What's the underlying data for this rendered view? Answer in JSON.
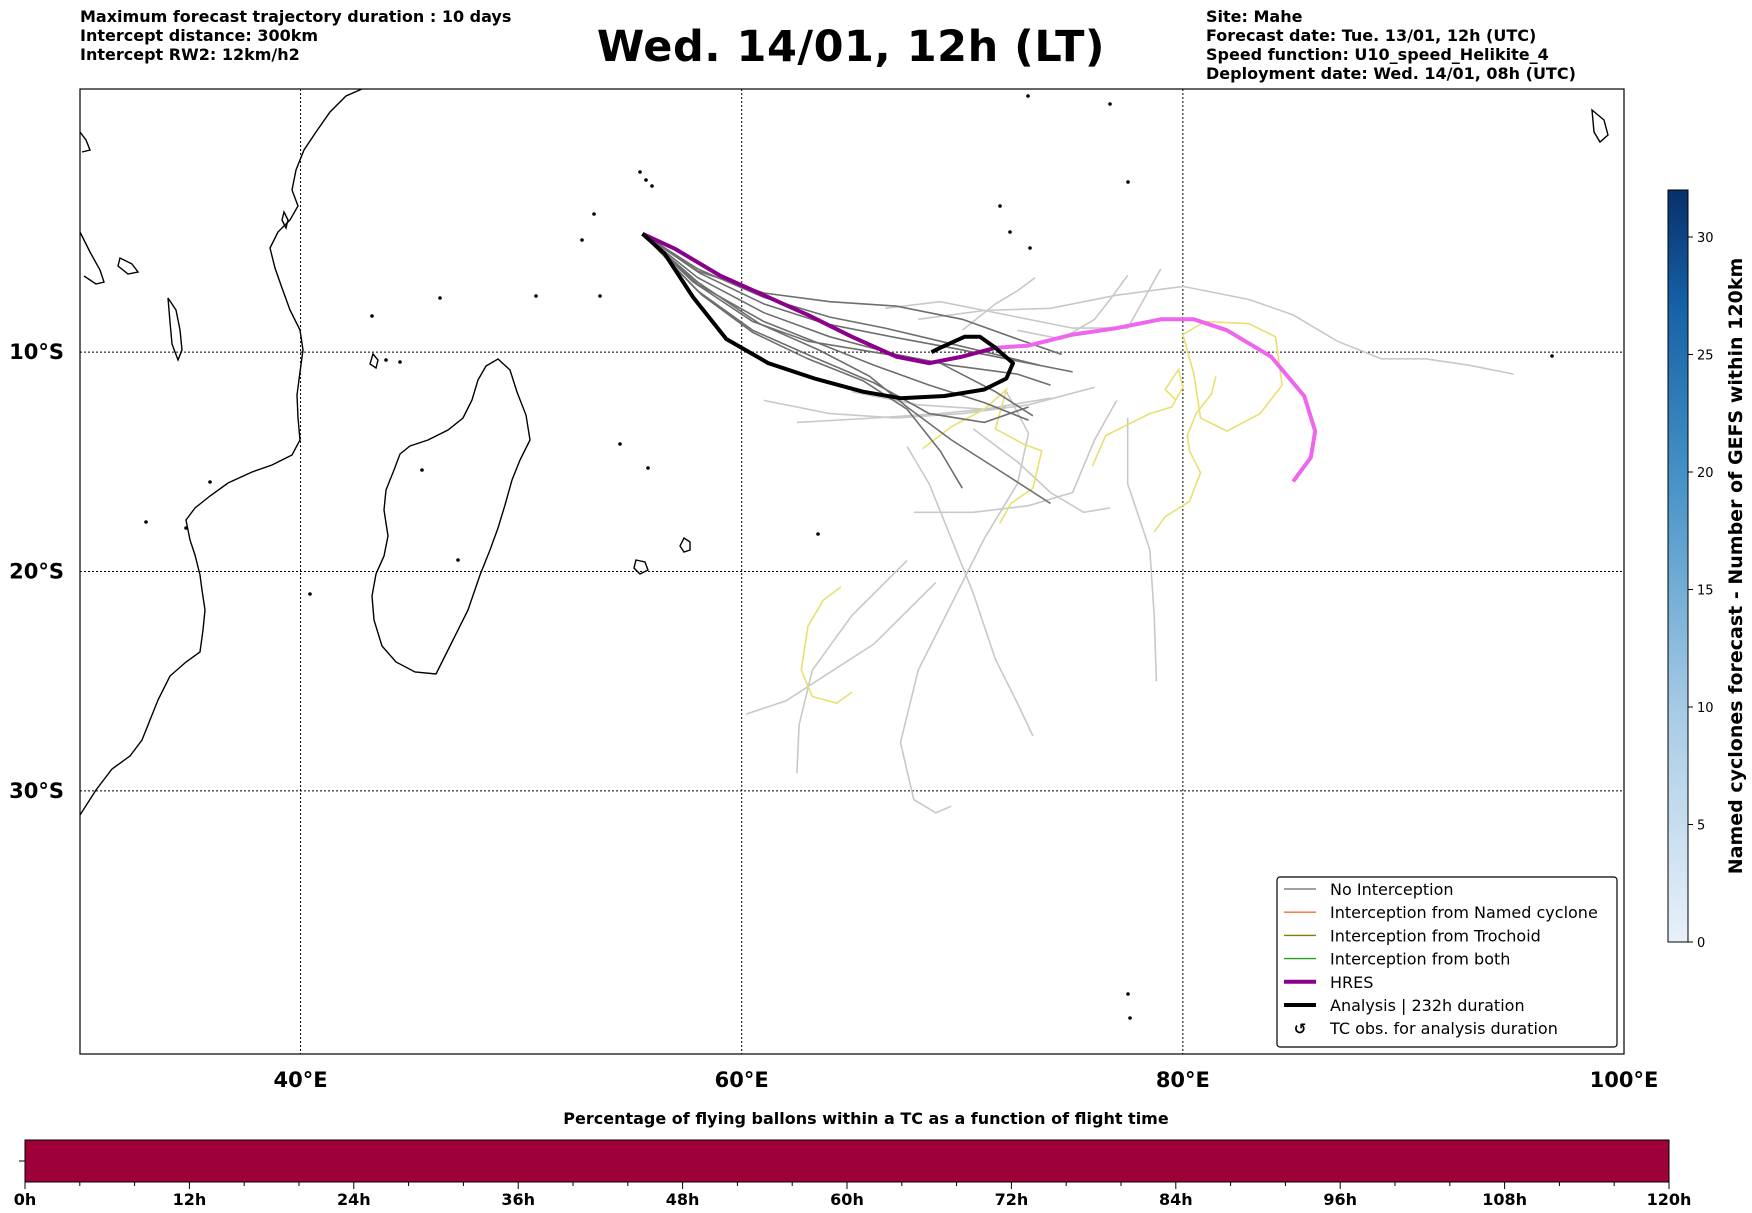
{
  "header": {
    "left_lines": [
      "Maximum forecast trajectory duration : 10 days",
      "Intercept distance: 300km",
      "Intercept RW2: 12km/h2"
    ],
    "title": "Wed. 14/01, 12h (LT)",
    "right_lines": [
      "Site: Mahe",
      "Forecast date: Tue. 13/01, 12h (UTC)",
      "Speed function: U10_speed_Helikite_4",
      "Deployment date: Wed. 14/01, 08h (UTC)"
    ]
  },
  "map": {
    "lon_range": [
      30,
      100
    ],
    "lat_range": [
      2,
      -42
    ],
    "lon_ticks": [
      "40°E",
      "60°E",
      "80°E",
      "100°E"
    ],
    "lat_ticks": [
      "10°S",
      "20°S",
      "30°S"
    ],
    "gridlines": true
  },
  "legend": {
    "position": "bottom-right",
    "entries": [
      {
        "label": "No Interception",
        "color": "#808080"
      },
      {
        "label": "Interception from Named cyclone",
        "color": "#ff6a33"
      },
      {
        "label": "Interception from Trochoid",
        "color": "#808000"
      },
      {
        "label": "Interception from both",
        "color": "#22a022"
      },
      {
        "label": "HRES",
        "color": "#8b008b"
      },
      {
        "label": "Analysis | 232h duration",
        "color": "#000000"
      },
      {
        "label": "TC obs. for analysis duration",
        "icon": "cyclone-symbol-icon"
      }
    ]
  },
  "colorbar_right": {
    "label": "Named cyclones forecast - Number of GEFS within 120km",
    "ticks": [
      "0",
      "5",
      "10",
      "15",
      "20",
      "25",
      "30"
    ],
    "range": [
      0,
      32
    ],
    "colors": [
      "#e6eef8",
      "#08306b"
    ]
  },
  "colorbar_bottom": {
    "title": "Percentage of flying ballons within a TC as a function of flight time",
    "ticks": [
      "0h",
      "12h",
      "24h",
      "36h",
      "48h",
      "60h",
      "72h",
      "84h",
      "96h",
      "108h",
      "120h"
    ],
    "fill_color": "#9e003a"
  },
  "trajectories": {
    "start": [
      55.5,
      -4.6
    ],
    "hres": [
      [
        55.5,
        -4.6
      ],
      [
        57,
        -5.3
      ],
      [
        59,
        -6.5
      ],
      [
        61,
        -7.4
      ],
      [
        63,
        -8.3
      ],
      [
        65,
        -9.3
      ],
      [
        67,
        -10.2
      ],
      [
        68.5,
        -10.5
      ],
      [
        70,
        -10.2
      ],
      [
        71.5,
        -9.8
      ],
      [
        73,
        -9.7
      ],
      [
        75,
        -9.2
      ],
      [
        77,
        -8.9
      ],
      [
        79,
        -8.5
      ],
      [
        80.5,
        -8.5
      ],
      [
        82,
        -9.0
      ],
      [
        84,
        -10.2
      ],
      [
        85.5,
        -12
      ],
      [
        86,
        -13.6
      ],
      [
        85.8,
        -14.8
      ],
      [
        85,
        -15.9
      ]
    ],
    "analysis": [
      [
        55.5,
        -4.6
      ],
      [
        56.5,
        -5.5
      ],
      [
        57.8,
        -7.5
      ],
      [
        59.3,
        -9.4
      ],
      [
        61.2,
        -10.5
      ],
      [
        63.3,
        -11.2
      ],
      [
        65.5,
        -11.8
      ],
      [
        67.2,
        -12.1
      ],
      [
        69.2,
        -12.0
      ],
      [
        71,
        -11.7
      ],
      [
        72,
        -11.2
      ],
      [
        72.3,
        -10.5
      ],
      [
        71.5,
        -9.8
      ],
      [
        70.8,
        -9.3
      ],
      [
        70.1,
        -9.3
      ],
      [
        69,
        -9.8
      ],
      [
        68.6,
        -10.0
      ]
    ],
    "gray_ensemble": [
      [
        [
          55.5,
          -4.6
        ],
        [
          58,
          -6.2
        ],
        [
          61,
          -7.5
        ],
        [
          64,
          -8.4
        ],
        [
          66.5,
          -8.9
        ],
        [
          69,
          -9.5
        ],
        [
          71.5,
          -10.1
        ],
        [
          73.5,
          -10.6
        ]
      ],
      [
        [
          55.5,
          -4.6
        ],
        [
          58,
          -6.6
        ],
        [
          61,
          -8.2
        ],
        [
          64,
          -9.3
        ],
        [
          67,
          -10.1
        ],
        [
          69.5,
          -10.6
        ],
        [
          72.5,
          -11.0
        ],
        [
          74,
          -11.5
        ]
      ],
      [
        [
          55.5,
          -4.6
        ],
        [
          58,
          -6.9
        ],
        [
          61,
          -8.6
        ],
        [
          63.5,
          -9.6
        ],
        [
          66,
          -10.6
        ],
        [
          68.5,
          -11.5
        ],
        [
          71,
          -12.3
        ],
        [
          73,
          -13.1
        ]
      ],
      [
        [
          55.5,
          -4.6
        ],
        [
          58.2,
          -7.4
        ],
        [
          60.5,
          -9.1
        ],
        [
          63,
          -10.3
        ],
        [
          65.5,
          -11.3
        ],
        [
          67.5,
          -12.6
        ],
        [
          69,
          -14.5
        ],
        [
          70,
          -16.2
        ]
      ],
      [
        [
          55.5,
          -4.6
        ],
        [
          58,
          -6.3
        ],
        [
          61,
          -7.3
        ],
        [
          64,
          -7.7
        ],
        [
          67,
          -7.9
        ],
        [
          70,
          -8.5
        ],
        [
          72.5,
          -9.4
        ],
        [
          74.5,
          -10.1
        ]
      ],
      [
        [
          55.5,
          -4.6
        ],
        [
          58,
          -6.8
        ],
        [
          60.8,
          -8.7
        ],
        [
          63.5,
          -9.9
        ],
        [
          65.8,
          -11.1
        ],
        [
          67.5,
          -12.5
        ],
        [
          69.5,
          -14.0
        ],
        [
          72,
          -15.6
        ],
        [
          74,
          -16.9
        ]
      ],
      [
        [
          55.5,
          -4.6
        ],
        [
          58,
          -7.2
        ],
        [
          60.5,
          -9.0
        ],
        [
          63.2,
          -10.2
        ],
        [
          66,
          -11.4
        ],
        [
          68.5,
          -12.8
        ],
        [
          71,
          -13.2
        ],
        [
          73,
          -12.5
        ]
      ],
      [
        [
          55.5,
          -4.6
        ],
        [
          57.8,
          -6.8
        ],
        [
          60.5,
          -8.6
        ],
        [
          63,
          -9.5
        ],
        [
          66,
          -10.0
        ],
        [
          69,
          -10.5
        ],
        [
          71.5,
          -11.8
        ],
        [
          73.2,
          -12.9
        ]
      ],
      [
        [
          55.5,
          -4.6
        ],
        [
          58.1,
          -6.4
        ],
        [
          61,
          -7.8
        ],
        [
          63.8,
          -8.7
        ],
        [
          66.8,
          -9.3
        ],
        [
          69.5,
          -9.8
        ],
        [
          72,
          -10.3
        ],
        [
          75,
          -10.9
        ]
      ]
    ],
    "lightgray_ensemble": [
      [
        [
          66.5,
          -8.0
        ],
        [
          69,
          -7.7
        ],
        [
          72,
          -8.3
        ],
        [
          75,
          -8.9
        ],
        [
          77.5,
          -8.9
        ],
        [
          79,
          -6.2
        ]
      ],
      [
        [
          68,
          -8.5
        ],
        [
          71,
          -8.1
        ],
        [
          74,
          -8.0
        ],
        [
          77,
          -7.4
        ],
        [
          80,
          -7.0
        ],
        [
          83,
          -7.6
        ],
        [
          85,
          -8.3
        ],
        [
          87,
          -9.5
        ],
        [
          89,
          -10.3
        ],
        [
          91,
          -10.3
        ],
        [
          93,
          -10.6
        ],
        [
          95,
          -11.0
        ]
      ],
      [
        [
          61,
          -12.2
        ],
        [
          64,
          -12.8
        ],
        [
          67,
          -13.0
        ],
        [
          70,
          -12.8
        ],
        [
          73,
          -12.4
        ],
        [
          76,
          -11.6
        ]
      ],
      [
        [
          62.5,
          -13.2
        ],
        [
          66,
          -13.0
        ],
        [
          69,
          -12.8
        ],
        [
          72,
          -12.5
        ]
      ],
      [
        [
          65,
          -11.8
        ],
        [
          68,
          -12.4
        ],
        [
          71,
          -12.6
        ],
        [
          74,
          -12.1
        ]
      ],
      [
        [
          67.5,
          -14.3
        ],
        [
          68.5,
          -16.0
        ],
        [
          69.5,
          -18.5
        ],
        [
          70.5,
          -21.0
        ],
        [
          71.5,
          -24.0
        ],
        [
          72.5,
          -26.0
        ],
        [
          73.2,
          -27.5
        ]
      ],
      [
        [
          67.8,
          -17.3
        ],
        [
          70.5,
          -17.3
        ],
        [
          73,
          -17.0
        ],
        [
          75,
          -16.4
        ],
        [
          76,
          -14.0
        ],
        [
          77,
          -12.2
        ]
      ],
      [
        [
          72,
          -11.8
        ],
        [
          73,
          -13.7
        ],
        [
          72.5,
          -16.0
        ],
        [
          71,
          -18.5
        ],
        [
          69.5,
          -21.5
        ],
        [
          68,
          -24.5
        ],
        [
          67.2,
          -27.8
        ],
        [
          67.8,
          -30.4
        ],
        [
          68.8,
          -31.0
        ],
        [
          69.5,
          -30.7
        ]
      ],
      [
        [
          60.2,
          -26.5
        ],
        [
          62,
          -25.9
        ],
        [
          64,
          -24.6
        ],
        [
          66,
          -23.3
        ],
        [
          67.5,
          -21.8
        ],
        [
          68.8,
          -20.5
        ]
      ],
      [
        [
          62.5,
          -29.2
        ],
        [
          62.6,
          -27.0
        ],
        [
          63.2,
          -24.5
        ],
        [
          65,
          -22.0
        ],
        [
          67.5,
          -19.5
        ]
      ],
      [
        [
          77.5,
          -13.0
        ],
        [
          77.5,
          -16.0
        ],
        [
          78.5,
          -19.0
        ],
        [
          78.7,
          -22.0
        ],
        [
          78.8,
          -25.0
        ]
      ],
      [
        [
          70.5,
          -13.5
        ],
        [
          72.5,
          -15.0
        ],
        [
          74,
          -16.4
        ],
        [
          75.5,
          -17.3
        ],
        [
          76.7,
          -17.1
        ]
      ],
      [
        [
          72.5,
          -9.0
        ],
        [
          74.5,
          -9.4
        ],
        [
          76,
          -8.5
        ],
        [
          76.7,
          -7.6
        ],
        [
          77.5,
          -6.5
        ]
      ],
      [
        [
          70,
          -9.0
        ],
        [
          71.5,
          -7.8
        ],
        [
          72.5,
          -7.2
        ],
        [
          73.3,
          -6.6
        ]
      ]
    ],
    "yellow_tracks": [
      [
        [
          84.5,
          -11.5
        ],
        [
          84.2,
          -9.3
        ],
        [
          83,
          -8.7
        ],
        [
          81,
          -8.6
        ],
        [
          80,
          -9.2
        ],
        [
          80.5,
          -11.0
        ],
        [
          80.8,
          -13.0
        ],
        [
          82,
          -13.6
        ],
        [
          83.5,
          -12.8
        ],
        [
          84.5,
          -11.5
        ]
      ],
      [
        [
          75.9,
          -15.2
        ],
        [
          76.5,
          -13.8
        ],
        [
          77.5,
          -13.3
        ],
        [
          78.5,
          -12.8
        ],
        [
          79.5,
          -12.5
        ],
        [
          80,
          -11.6
        ],
        [
          79.8,
          -10.8
        ],
        [
          79.2,
          -11.7
        ],
        [
          79.7,
          -12.2
        ]
      ],
      [
        [
          78.7,
          -18.2
        ],
        [
          79.2,
          -17.5
        ],
        [
          80.3,
          -16.8
        ],
        [
          80.8,
          -15.5
        ],
        [
          80.3,
          -14.5
        ],
        [
          80.2,
          -13.8
        ],
        [
          80.6,
          -12.8
        ],
        [
          81.3,
          -11.9
        ],
        [
          81.5,
          -11.1
        ]
      ],
      [
        [
          68.2,
          -14.4
        ],
        [
          69.5,
          -13.4
        ],
        [
          71,
          -12.6
        ],
        [
          72,
          -11.7
        ],
        [
          71.5,
          -13.5
        ],
        [
          72.8,
          -14.2
        ],
        [
          73.6,
          -14.5
        ],
        [
          73.2,
          -16.2
        ],
        [
          72.2,
          -16.9
        ],
        [
          71.7,
          -17.8
        ]
      ],
      [
        [
          64.5,
          -20.7
        ],
        [
          63.7,
          -21.3
        ],
        [
          63,
          -22.5
        ],
        [
          62.7,
          -24.5
        ],
        [
          63.2,
          -25.7
        ],
        [
          64.3,
          -26.0
        ],
        [
          65,
          -25.5
        ]
      ]
    ]
  }
}
